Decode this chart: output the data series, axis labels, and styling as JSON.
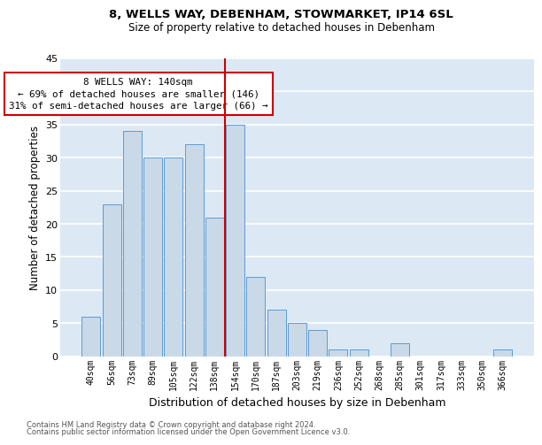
{
  "title1": "8, WELLS WAY, DEBENHAM, STOWMARKET, IP14 6SL",
  "title2": "Size of property relative to detached houses in Debenham",
  "xlabel": "Distribution of detached houses by size in Debenham",
  "ylabel": "Number of detached properties",
  "categories": [
    "40sqm",
    "56sqm",
    "73sqm",
    "89sqm",
    "105sqm",
    "122sqm",
    "138sqm",
    "154sqm",
    "170sqm",
    "187sqm",
    "203sqm",
    "219sqm",
    "236sqm",
    "252sqm",
    "268sqm",
    "285sqm",
    "301sqm",
    "317sqm",
    "333sqm",
    "350sqm",
    "366sqm"
  ],
  "values": [
    6,
    23,
    34,
    30,
    30,
    32,
    21,
    35,
    12,
    7,
    5,
    4,
    1,
    1,
    0,
    2,
    0,
    0,
    0,
    0,
    1
  ],
  "bar_color": "#c9d9e8",
  "bar_edge_color": "#5b9bd5",
  "background_color": "#dce9f5",
  "grid_color": "#ffffff",
  "vline_color": "#cc0000",
  "annotation_box_text": "8 WELLS WAY: 140sqm\n← 69% of detached houses are smaller (146)\n31% of semi-detached houses are larger (66) →",
  "annotation_box_color": "#cc0000",
  "ylim": [
    0,
    45
  ],
  "yticks": [
    0,
    5,
    10,
    15,
    20,
    25,
    30,
    35,
    40,
    45
  ],
  "footnote1": "Contains HM Land Registry data © Crown copyright and database right 2024.",
  "footnote2": "Contains public sector information licensed under the Open Government Licence v3.0."
}
